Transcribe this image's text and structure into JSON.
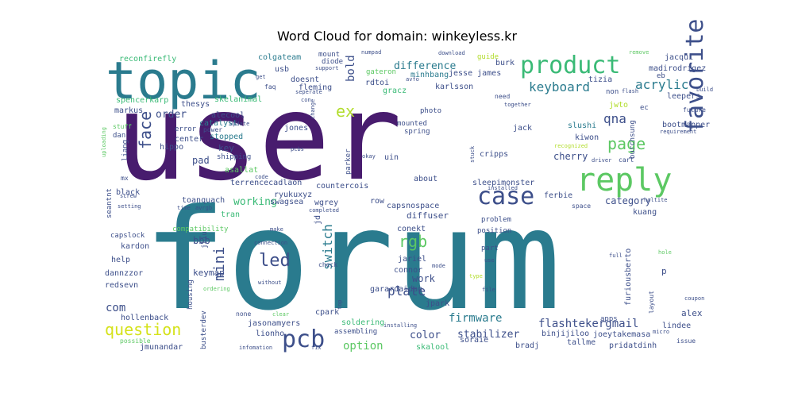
{
  "chart_data": {
    "type": "wordcloud",
    "title": "Word Cloud for domain: winkeyless.kr",
    "words": [
      {
        "text": "user",
        "weight": 100
      },
      {
        "text": "forum",
        "weight": 100
      },
      {
        "text": "topic",
        "weight": 40
      },
      {
        "text": "reply",
        "weight": 25
      },
      {
        "text": "product",
        "weight": 20
      },
      {
        "text": "favorite",
        "weight": 22
      },
      {
        "text": "case",
        "weight": 20
      },
      {
        "text": "pcb",
        "weight": 18
      },
      {
        "text": "question",
        "weight": 13
      },
      {
        "text": "rgb",
        "weight": 13
      },
      {
        "text": "led",
        "weight": 14
      },
      {
        "text": "keyboard",
        "weight": 11
      },
      {
        "text": "page",
        "weight": 11
      },
      {
        "text": "face",
        "weight": 10
      },
      {
        "text": "acrylic",
        "weight": 10
      },
      {
        "text": "qna",
        "weight": 10
      },
      {
        "text": "switch",
        "weight": 10
      },
      {
        "text": "mini",
        "weight": 10
      },
      {
        "text": "ex",
        "weight": 10
      },
      {
        "text": "bold",
        "weight": 9
      },
      {
        "text": "plate",
        "weight": 9
      },
      {
        "text": "firmware",
        "weight": 8
      },
      {
        "text": "flashtekergmail",
        "weight": 8
      },
      {
        "text": "option",
        "weight": 8
      },
      {
        "text": "com",
        "weight": 8
      },
      {
        "text": "difference",
        "weight": 7
      },
      {
        "text": "working",
        "weight": 7
      },
      {
        "text": "color",
        "weight": 7
      },
      {
        "text": "order",
        "weight": 7
      },
      {
        "text": "stabilizer",
        "weight": 7
      },
      {
        "text": "cherry",
        "weight": 6
      },
      {
        "text": "work",
        "weight": 6
      },
      {
        "text": "category",
        "weight": 6
      },
      {
        "text": "diffuser",
        "weight": 6
      },
      {
        "text": "pad",
        "weight": 6
      },
      {
        "text": "bbb",
        "weight": 6
      },
      {
        "text": "key",
        "weight": 6
      },
      {
        "text": "keymap",
        "weight": 5
      },
      {
        "text": "alex",
        "weight": 5
      },
      {
        "text": "reconfirefly",
        "weight": 5
      },
      {
        "text": "colgateam",
        "weight": 5
      },
      {
        "text": "jesse james",
        "weight": 5
      },
      {
        "text": "minhbang",
        "weight": 5
      },
      {
        "text": "karlsson",
        "weight": 5
      },
      {
        "text": "jacqui",
        "weight": 5
      },
      {
        "text": "madirodrigez",
        "weight": 5
      },
      {
        "text": "leepers",
        "weight": 5
      },
      {
        "text": "bootmapper",
        "weight": 5
      },
      {
        "text": "burchsung",
        "weight": 5
      },
      {
        "text": "slushi",
        "weight": 5
      },
      {
        "text": "kiwon",
        "weight": 5
      },
      {
        "text": "cripps",
        "weight": 5
      },
      {
        "text": "ferbie",
        "weight": 5
      },
      {
        "text": "sleepimonster",
        "weight": 5
      },
      {
        "text": "capsnospace",
        "weight": 5
      },
      {
        "text": "countercois",
        "weight": 5
      },
      {
        "text": "terrencecadlaon",
        "weight": 5
      },
      {
        "text": "asallat",
        "weight": 5
      },
      {
        "text": "ryukuxyz",
        "weight": 5
      },
      {
        "text": "swagsea",
        "weight": 5
      },
      {
        "text": "wgrey",
        "weight": 5
      },
      {
        "text": "toanquach",
        "weight": 5
      },
      {
        "text": "seantnt",
        "weight": 5
      },
      {
        "text": "black",
        "weight": 5
      },
      {
        "text": "liang",
        "weight": 5
      },
      {
        "text": "hippo",
        "weight": 5
      },
      {
        "text": "center",
        "weight": 5
      },
      {
        "text": "stopped",
        "weight": 5
      },
      {
        "text": "catalyst",
        "weight": 5
      },
      {
        "text": "alecool",
        "weight": 5
      },
      {
        "text": "markus",
        "weight": 5
      },
      {
        "text": "thesys",
        "weight": 5
      },
      {
        "text": "skelanimal",
        "weight": 5
      },
      {
        "text": "spencerkarp",
        "weight": 5
      },
      {
        "text": "doesnt",
        "weight": 5
      },
      {
        "text": "fleming",
        "weight": 5
      },
      {
        "text": "usb",
        "weight": 5
      },
      {
        "text": "rdtoi",
        "weight": 5
      },
      {
        "text": "gracz",
        "weight": 5
      },
      {
        "text": "jones",
        "weight": 5
      },
      {
        "text": "jack",
        "weight": 5
      },
      {
        "text": "tizia",
        "weight": 5
      },
      {
        "text": "burk",
        "weight": 5
      },
      {
        "text": "guide",
        "weight": 5
      },
      {
        "text": "jwto",
        "weight": 5
      },
      {
        "text": "non",
        "weight": 4
      },
      {
        "text": "need",
        "weight": 4
      },
      {
        "text": "ec",
        "weight": 4
      },
      {
        "text": "future",
        "weight": 4
      },
      {
        "text": "requirement",
        "weight": 4
      },
      {
        "text": "about",
        "weight": 5
      },
      {
        "text": "uin",
        "weight": 5
      },
      {
        "text": "parker",
        "weight": 4
      },
      {
        "text": "row",
        "weight": 5
      },
      {
        "text": "conekt",
        "weight": 5
      },
      {
        "text": "tran",
        "weight": 5
      },
      {
        "text": "kuang",
        "weight": 5
      },
      {
        "text": "help",
        "weight": 5
      },
      {
        "text": "kardon",
        "weight": 5
      },
      {
        "text": "dannzzor",
        "weight": 5
      },
      {
        "text": "redsevn",
        "weight": 5
      },
      {
        "text": "hollenback",
        "weight": 5
      },
      {
        "text": "jmunandar",
        "weight": 5
      },
      {
        "text": "busterdev",
        "weight": 5
      },
      {
        "text": "jasonamyers",
        "weight": 5
      },
      {
        "text": "lionho",
        "weight": 5
      },
      {
        "text": "cpark",
        "weight": 5
      },
      {
        "text": "jpark",
        "weight": 5
      },
      {
        "text": "soldering",
        "weight": 5
      },
      {
        "text": "assembling",
        "weight": 4
      },
      {
        "text": "garardaidan",
        "weight": 5
      },
      {
        "text": "connor",
        "weight": 5
      },
      {
        "text": "jariel",
        "weight": 5
      },
      {
        "text": "skalool",
        "weight": 5
      },
      {
        "text": "soraie",
        "weight": 5
      },
      {
        "text": "bradj",
        "weight": 5
      },
      {
        "text": "binjijiloo",
        "weight": 5
      },
      {
        "text": "joeytakemasa",
        "weight": 5
      },
      {
        "text": "tallme",
        "weight": 5
      },
      {
        "text": "pridatdinh",
        "weight": 5
      },
      {
        "text": "lindee",
        "weight": 5
      },
      {
        "text": "furiousberto",
        "weight": 5
      },
      {
        "text": "layout",
        "weight": 4
      },
      {
        "text": "housing",
        "weight": 4
      },
      {
        "text": "jliu",
        "weight": 4
      },
      {
        "text": "jd",
        "weight": 4
      },
      {
        "text": "capslock",
        "weight": 4
      },
      {
        "text": "compatibility",
        "weight": 4
      },
      {
        "text": "problem",
        "weight": 4
      },
      {
        "text": "position",
        "weight": 4
      },
      {
        "text": "part",
        "weight": 4
      },
      {
        "text": "dan",
        "weight": 4
      },
      {
        "text": "mx",
        "weight": 4
      },
      {
        "text": "shipping",
        "weight": 4
      },
      {
        "text": "error",
        "weight": 4
      },
      {
        "text": "power",
        "weight": 4
      },
      {
        "text": "stuff",
        "weight": 4
      },
      {
        "text": "mounted",
        "weight": 4
      },
      {
        "text": "spring",
        "weight": 4
      },
      {
        "text": "photo",
        "weight": 4
      },
      {
        "text": "mount",
        "weight": 4
      },
      {
        "text": "diode",
        "weight": 4
      },
      {
        "text": "gateron",
        "weight": 4
      },
      {
        "text": "numpad",
        "weight": 3
      },
      {
        "text": "download",
        "weight": 3
      },
      {
        "text": "remove",
        "weight": 3
      },
      {
        "text": "support",
        "weight": 3
      },
      {
        "text": "eb",
        "weight": 4
      },
      {
        "text": "build",
        "weight": 3
      },
      {
        "text": "hole",
        "weight": 3
      },
      {
        "text": "full",
        "weight": 3
      },
      {
        "text": "coupon",
        "weight": 3
      },
      {
        "text": "micro",
        "weight": 3
      },
      {
        "text": "issue",
        "weight": 3
      },
      {
        "text": "apps",
        "weight": 4
      },
      {
        "text": "cart",
        "weight": 3
      },
      {
        "text": "driver",
        "weight": 3
      },
      {
        "text": "recognized",
        "weight": 3
      },
      {
        "text": "together",
        "weight": 3
      },
      {
        "text": "flash",
        "weight": 3
      },
      {
        "text": "installed",
        "weight": 3
      },
      {
        "text": "installing",
        "weight": 3
      },
      {
        "text": "okay",
        "weight": 3
      },
      {
        "text": "code",
        "weight": 3
      },
      {
        "text": "pcbs",
        "weight": 3
      },
      {
        "text": "update",
        "weight": 3
      },
      {
        "text": "seperate",
        "weight": 3
      },
      {
        "text": "con",
        "weight": 3
      },
      {
        "text": "get",
        "weight": 3
      },
      {
        "text": "faq",
        "weight": 4
      },
      {
        "text": "screw",
        "weight": 3
      },
      {
        "text": "uploading",
        "weight": 3
      },
      {
        "text": "setting",
        "weight": 3
      },
      {
        "text": "time",
        "weight": 3
      },
      {
        "text": "avrgb",
        "weight": 3
      },
      {
        "text": "completed",
        "weight": 3
      },
      {
        "text": "connection",
        "weight": 3
      },
      {
        "text": "make",
        "weight": 3
      },
      {
        "text": "without",
        "weight": 3
      },
      {
        "text": "mode",
        "weight": 3
      },
      {
        "text": "type",
        "weight": 3
      },
      {
        "text": "file",
        "weight": 3
      },
      {
        "text": "use",
        "weight": 3
      },
      {
        "text": "space",
        "weight": 4
      },
      {
        "text": "holtite",
        "weight": 3
      },
      {
        "text": "check",
        "weight": 4
      },
      {
        "text": "ordering",
        "weight": 3
      },
      {
        "text": "possible",
        "weight": 4
      },
      {
        "text": "infomation",
        "weight": 3
      },
      {
        "text": "fix",
        "weight": 3
      },
      {
        "text": "none",
        "weight": 4
      },
      {
        "text": "clear",
        "weight": 3
      },
      {
        "text": "top",
        "weight": 3
      },
      {
        "text": "change",
        "weight": 3
      },
      {
        "text": "stuck",
        "weight": 3
      },
      {
        "text": "avfo",
        "weight": 3
      },
      {
        "text": "p",
        "weight": 5
      }
    ]
  }
}
